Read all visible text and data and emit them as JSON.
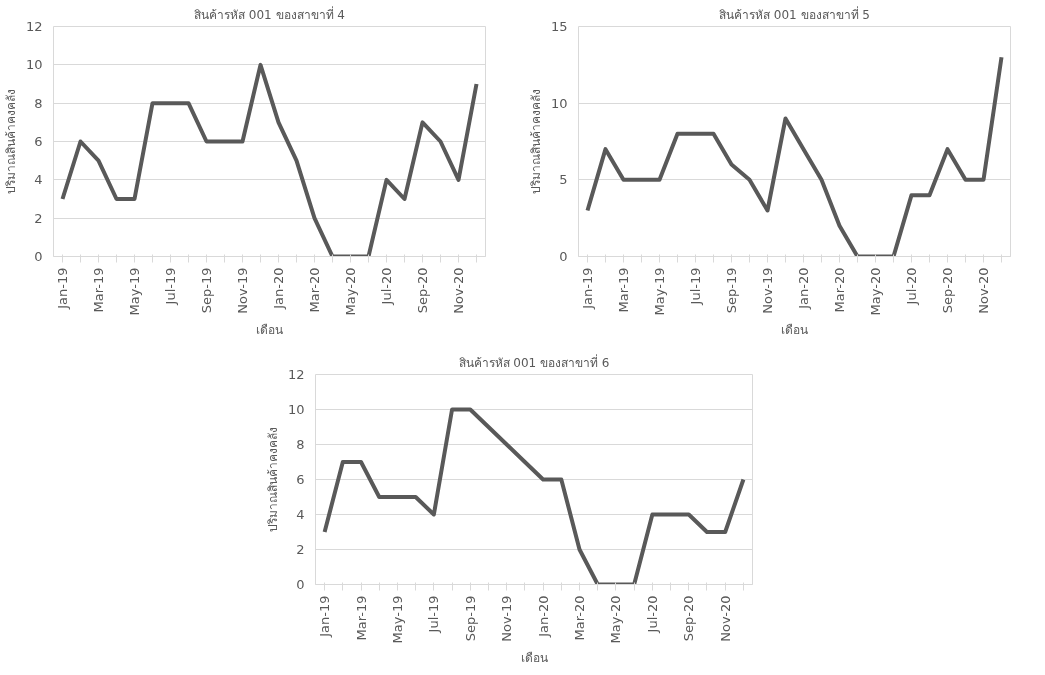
{
  "chart_data": [
    {
      "type": "line",
      "title": "สินค้ารหัส 001 ของสาขาที่ 4",
      "xlabel": "เดือน",
      "ylabel": "ปริมาณสินค้าคงคลัง",
      "categories": [
        "Jan-19",
        null,
        "Mar-19",
        null,
        "May-19",
        null,
        "Jul-19",
        null,
        "Sep-19",
        null,
        "Nov-19",
        null,
        "Jan-20",
        null,
        "Mar-20",
        null,
        "May-20",
        null,
        "Jul-20",
        null,
        "Sep-20",
        null,
        "Nov-20",
        null
      ],
      "series": [
        {
          "color": "#595959",
          "values": [
            3,
            6,
            5,
            3,
            3,
            8,
            8,
            8,
            6,
            6,
            6,
            10,
            7,
            5,
            2,
            0,
            0,
            0,
            4,
            3,
            7,
            6,
            4,
            9
          ]
        }
      ],
      "ylim": [
        0,
        12
      ],
      "yticks": [
        0,
        2,
        4,
        6,
        8,
        10,
        12
      ],
      "grid": "y",
      "marker": "none",
      "line_style": "solid"
    },
    {
      "type": "line",
      "title": "สินค้ารหัส 001 ของสาขาที่ 5",
      "xlabel": "เดือน",
      "ylabel": "ปริมาณสินค้าคงคลัง",
      "categories": [
        "Jan-19",
        null,
        "Mar-19",
        null,
        "May-19",
        null,
        "Jul-19",
        null,
        "Sep-19",
        null,
        "Nov-19",
        null,
        "Jan-20",
        null,
        "Mar-20",
        null,
        "May-20",
        null,
        "Jul-20",
        null,
        "Sep-20",
        null,
        "Nov-20",
        null
      ],
      "series": [
        {
          "color": "#595959",
          "values": [
            3,
            7,
            5,
            5,
            5,
            8,
            8,
            8,
            6,
            5,
            3,
            9,
            7,
            5,
            2,
            0,
            0,
            0,
            4,
            4,
            7,
            5,
            5,
            13
          ]
        }
      ],
      "ylim": [
        0,
        15
      ],
      "yticks": [
        0,
        5,
        10,
        15
      ],
      "grid": "y",
      "marker": "none",
      "line_style": "solid"
    },
    {
      "type": "line",
      "title": "สินค้ารหัส 001 ของสาขาที่ 6",
      "xlabel": "เดือน",
      "ylabel": "ปริมาณสินค้าคงคลัง",
      "categories": [
        "Jan-19",
        null,
        "Mar-19",
        null,
        "May-19",
        null,
        "Jul-19",
        null,
        "Sep-19",
        null,
        "Nov-19",
        null,
        "Jan-20",
        null,
        "Mar-20",
        null,
        "May-20",
        null,
        "Jul-20",
        null,
        "Sep-20",
        null,
        "Nov-20",
        null
      ],
      "series": [
        {
          "color": "#595959",
          "values": [
            3,
            7,
            7,
            5,
            5,
            5,
            4,
            10,
            10,
            9,
            8,
            7,
            6,
            6,
            2,
            0,
            0,
            0,
            4,
            4,
            4,
            3,
            3,
            6
          ]
        }
      ],
      "ylim": [
        0,
        12
      ],
      "yticks": [
        0,
        2,
        4,
        6,
        8,
        10,
        12
      ],
      "grid": "y",
      "marker": "none",
      "line_style": "solid"
    }
  ]
}
